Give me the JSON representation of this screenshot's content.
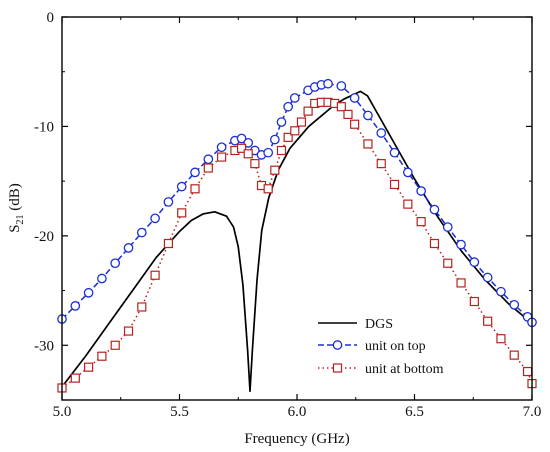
{
  "chart_data": {
    "type": "line",
    "title": "",
    "xlabel": "Frequency (GHz)",
    "ylabel": {
      "main": "S",
      "sub": "21",
      "unit": " (dB)"
    },
    "xlim": [
      5.0,
      7.0
    ],
    "ylim": [
      -35,
      0
    ],
    "xticks": [
      5.0,
      5.5,
      6.0,
      6.5,
      7.0
    ],
    "xtick_labels": [
      "5.0",
      "5.5",
      "6.0",
      "6.5",
      "7.0"
    ],
    "yticks": [
      0,
      -10,
      -20,
      -30
    ],
    "ytick_labels": [
      "0",
      "-10",
      "-20",
      "-30"
    ],
    "grid": false,
    "legend_position": "bottom-right",
    "series": [
      {
        "name": "DGS",
        "color": "#000000",
        "style": "solid",
        "marker": "none",
        "x": [
          5.0,
          5.1,
          5.2,
          5.3,
          5.4,
          5.5,
          5.55,
          5.6,
          5.65,
          5.7,
          5.73,
          5.75,
          5.77,
          5.79,
          5.8,
          5.81,
          5.83,
          5.85,
          5.88,
          5.92,
          5.97,
          6.05,
          6.15,
          6.2,
          6.27,
          6.3,
          6.4,
          6.5,
          6.6,
          6.7,
          6.8,
          6.9,
          7.0
        ],
        "y": [
          -33.8,
          -31.0,
          -28.0,
          -25.0,
          -22.0,
          -19.6,
          -18.6,
          -18.0,
          -17.8,
          -18.2,
          -19.2,
          -21.0,
          -24.5,
          -30.5,
          -34.2,
          -30.5,
          -24.0,
          -19.5,
          -16.5,
          -14.0,
          -12.0,
          -10.0,
          -8.2,
          -7.5,
          -6.8,
          -7.2,
          -11.0,
          -14.8,
          -18.3,
          -21.4,
          -24.0,
          -26.2,
          -28.0
        ]
      },
      {
        "name": "unit on top",
        "color": "#1a2ed4",
        "style": "dashed",
        "marker": "circle",
        "x": [
          5.0,
          5.0566,
          5.1132,
          5.1698,
          5.2264,
          5.283,
          5.3396,
          5.3962,
          5.4528,
          5.5094,
          5.566,
          5.6226,
          5.6792,
          5.7358,
          5.7642,
          5.7924,
          5.8208,
          5.849,
          5.8774,
          5.9057,
          5.934,
          5.9623,
          5.9906,
          6.0472,
          6.0755,
          6.1038,
          6.1321,
          6.1887,
          6.2453,
          6.3019,
          6.3585,
          6.4151,
          6.4717,
          6.5283,
          6.5849,
          6.6415,
          6.6981,
          6.7547,
          6.8113,
          6.8679,
          6.9245,
          6.9811,
          7.0
        ],
        "y": [
          -27.6,
          -26.4,
          -25.2,
          -23.9,
          -22.5,
          -21.1,
          -19.7,
          -18.4,
          -16.9,
          -15.5,
          -14.2,
          -13.0,
          -11.9,
          -11.3,
          -11.1,
          -11.5,
          -12.2,
          -12.6,
          -12.4,
          -11.2,
          -9.6,
          -8.2,
          -7.4,
          -6.7,
          -6.4,
          -6.2,
          -6.1,
          -6.3,
          -7.4,
          -9.0,
          -10.6,
          -12.4,
          -14.2,
          -15.9,
          -17.6,
          -19.2,
          -20.8,
          -22.4,
          -23.8,
          -25.1,
          -26.3,
          -27.4,
          -27.9
        ]
      },
      {
        "name": "unit at  bottom",
        "color": "#b5231f",
        "style": "dotted",
        "marker": "square",
        "x": [
          5.0,
          5.0566,
          5.1132,
          5.1698,
          5.2264,
          5.283,
          5.3396,
          5.3962,
          5.4528,
          5.5094,
          5.566,
          5.6226,
          5.6792,
          5.7358,
          5.7642,
          5.7924,
          5.8208,
          5.849,
          5.8774,
          5.9057,
          5.934,
          5.9623,
          5.9906,
          6.0189,
          6.0472,
          6.0755,
          6.1038,
          6.1321,
          6.1604,
          6.1887,
          6.217,
          6.2453,
          6.3019,
          6.3585,
          6.4151,
          6.4717,
          6.5283,
          6.5849,
          6.6415,
          6.6981,
          6.7547,
          6.8113,
          6.8679,
          6.9245,
          6.9811,
          7.0
        ],
        "y": [
          -33.9,
          -33.0,
          -32.0,
          -31.0,
          -30.0,
          -28.7,
          -26.5,
          -23.6,
          -20.7,
          -17.9,
          -15.7,
          -13.8,
          -12.8,
          -12.2,
          -12.0,
          -12.5,
          -13.4,
          -15.4,
          -15.7,
          -14.0,
          -12.2,
          -11.0,
          -10.4,
          -9.6,
          -8.6,
          -7.9,
          -7.8,
          -7.8,
          -7.9,
          -8.2,
          -8.9,
          -9.8,
          -11.6,
          -13.4,
          -15.3,
          -17.1,
          -18.7,
          -20.7,
          -22.5,
          -24.3,
          -26.0,
          -27.8,
          -29.4,
          -30.9,
          -32.4,
          -33.5
        ]
      }
    ]
  }
}
